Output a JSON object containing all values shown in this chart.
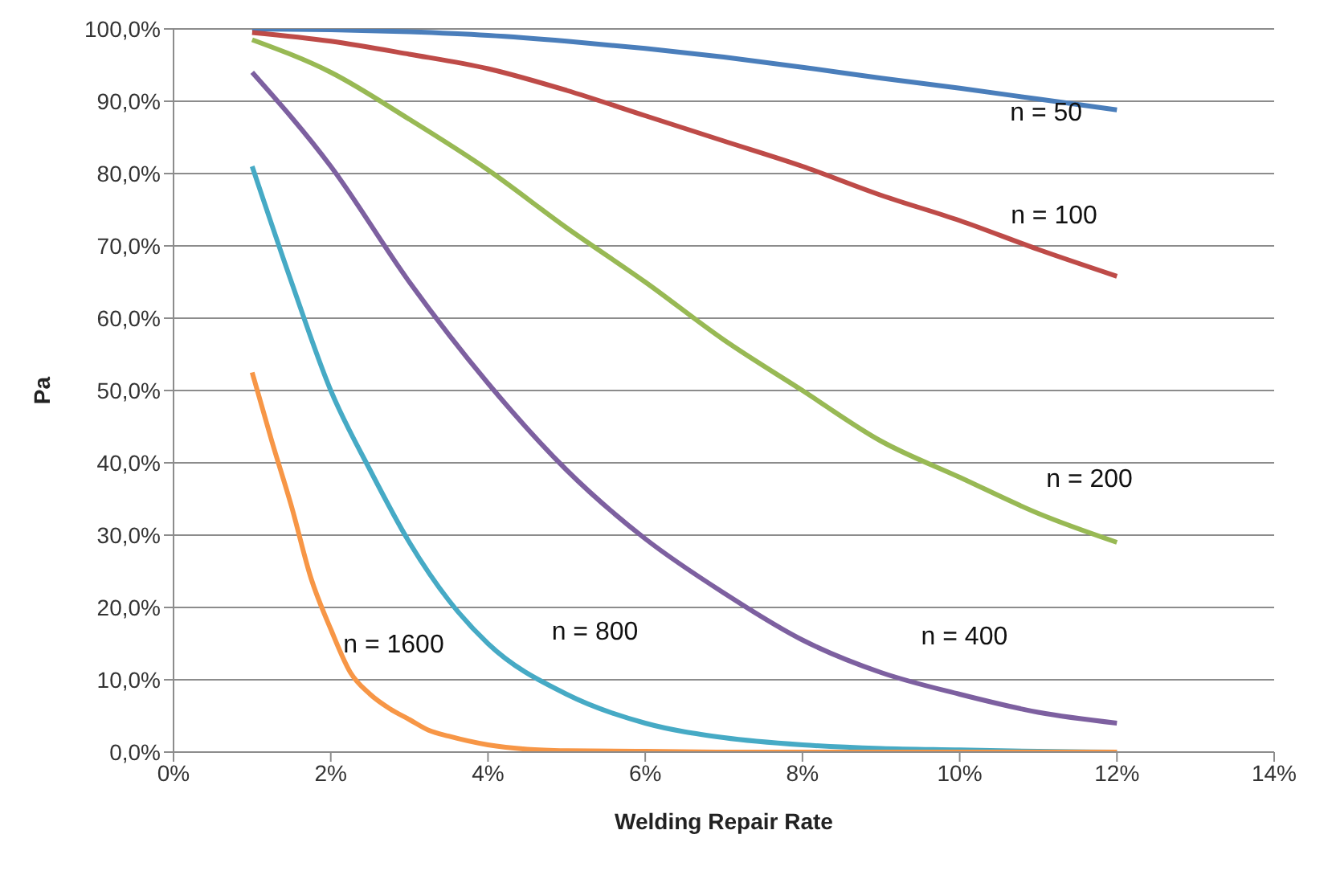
{
  "chart_data": {
    "type": "line",
    "xlabel": "Welding Repair Rate",
    "ylabel": "Pa",
    "marker": "none",
    "grid": "y",
    "legend": false,
    "xlim": [
      0,
      14
    ],
    "xticks": [
      {
        "value": 0,
        "label": "0%"
      },
      {
        "value": 2,
        "label": "2%"
      },
      {
        "value": 4,
        "label": "4%"
      },
      {
        "value": 6,
        "label": "6%"
      },
      {
        "value": 8,
        "label": "8%"
      },
      {
        "value": 10,
        "label": "10%"
      },
      {
        "value": 12,
        "label": "12%"
      },
      {
        "value": 14,
        "label": "14%"
      }
    ],
    "ylim": [
      0,
      100
    ],
    "yticks": [
      {
        "value": 0,
        "label": "0,0%"
      },
      {
        "value": 10,
        "label": "10,0%"
      },
      {
        "value": 20,
        "label": "20,0%"
      },
      {
        "value": 30,
        "label": "30,0%"
      },
      {
        "value": 40,
        "label": "40,0%"
      },
      {
        "value": 50,
        "label": "50,0%"
      },
      {
        "value": 60,
        "label": "60,0%"
      },
      {
        "value": 70,
        "label": "70,0%"
      },
      {
        "value": 80,
        "label": "80,0%"
      },
      {
        "value": 90,
        "label": "90,0%"
      },
      {
        "value": 100,
        "label": "100,0%"
      }
    ],
    "series": [
      {
        "name": "n = 50",
        "color": "#4a7ebb",
        "x": [
          1,
          2,
          3,
          4,
          5,
          6,
          7,
          8,
          9,
          10,
          11,
          12
        ],
        "values": [
          100,
          99.9,
          99.6,
          99.1,
          98.3,
          97.3,
          96.1,
          94.7,
          93.2,
          91.8,
          90.3,
          88.8
        ]
      },
      {
        "name": "n = 100",
        "color": "#be4b48",
        "x": [
          1,
          2,
          3,
          4,
          5,
          6,
          7,
          8,
          9,
          10,
          11,
          12
        ],
        "values": [
          99.5,
          98.3,
          96.5,
          94.5,
          91.5,
          88,
          84.5,
          81,
          77,
          73.5,
          69.5,
          65.8
        ]
      },
      {
        "name": "n = 200",
        "color": "#98b954",
        "x": [
          1,
          2,
          3,
          4,
          5,
          6,
          7,
          8,
          9,
          10,
          11,
          12
        ],
        "values": [
          98.5,
          94,
          87.5,
          80.5,
          72.5,
          65,
          57,
          50,
          43,
          38,
          33,
          29
        ]
      },
      {
        "name": "n = 400",
        "color": "#7d60a0",
        "x": [
          1,
          2,
          3,
          4,
          5,
          6,
          7,
          8,
          9,
          10,
          11,
          12
        ],
        "values": [
          94,
          81,
          65,
          51,
          39,
          29.5,
          22,
          15.5,
          11,
          8,
          5.5,
          4
        ]
      },
      {
        "name": "n = 800",
        "color": "#46aac5",
        "x": [
          1,
          1.5,
          2,
          2.5,
          3,
          3.5,
          4,
          5,
          6,
          7,
          8,
          9,
          10,
          11,
          12
        ],
        "values": [
          81,
          65,
          50,
          39,
          29,
          21,
          15,
          8,
          4,
          2,
          1,
          0.5,
          0.3,
          0.1,
          0
        ]
      },
      {
        "name": "n = 1600",
        "color": "#f79646",
        "x": [
          1,
          1.25,
          1.5,
          1.75,
          2,
          2.25,
          2.5,
          2.75,
          3,
          3.25,
          3.5,
          4,
          4.5,
          5,
          6,
          7,
          8,
          9,
          10,
          11,
          12
        ],
        "values": [
          52.5,
          43,
          34,
          24,
          17,
          11,
          8,
          6,
          4.5,
          3,
          2.2,
          1,
          0.4,
          0.2,
          0.1,
          0,
          0,
          0,
          0,
          0,
          0
        ]
      }
    ]
  }
}
